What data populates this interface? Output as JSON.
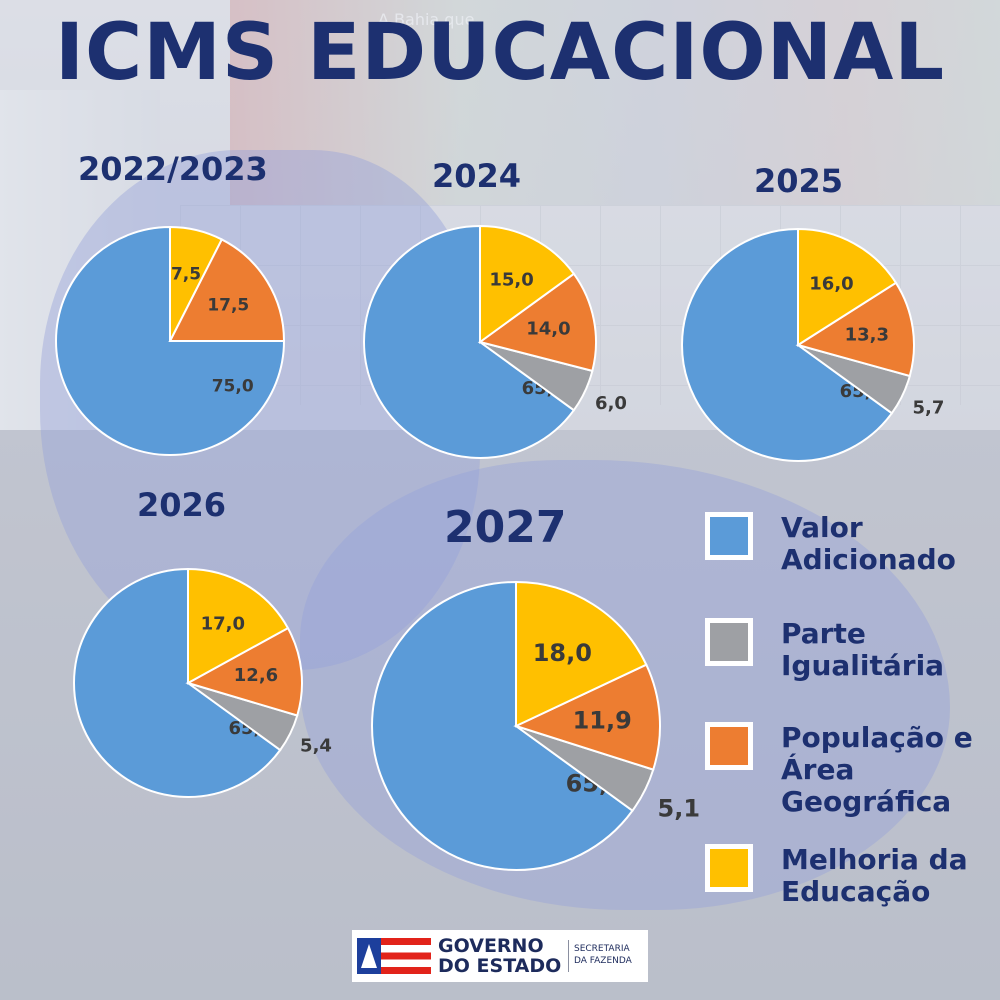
{
  "title": "ICMS EDUCACIONAL",
  "colors": {
    "valor_adicionado": "#5b9bd8",
    "parte_igualitaria": "#9ea0a4",
    "populacao_area": "#ed7d31",
    "melhoria_educacao": "#ffc000",
    "title": "#1d3070"
  },
  "chart_data": [
    {
      "type": "pie",
      "title": "2022/2023",
      "categories": [
        "Valor Adicionado",
        "Parte Igualitária",
        "População e Área Geográfica",
        "Melhoria da Educação"
      ],
      "values": [
        75.0,
        0,
        17.5,
        7.5
      ],
      "labels": [
        "75,0",
        "",
        "17,5",
        "7,5"
      ]
    },
    {
      "type": "pie",
      "title": "2024",
      "categories": [
        "Valor Adicionado",
        "Parte Igualitária",
        "População e Área Geográfica",
        "Melhoria da Educação"
      ],
      "values": [
        65.0,
        6.0,
        14.0,
        15.0
      ],
      "labels": [
        "65,0",
        "6,0",
        "14,0",
        "15,0"
      ]
    },
    {
      "type": "pie",
      "title": "2025",
      "categories": [
        "Valor Adicionado",
        "Parte Igualitária",
        "População e Área Geográfica",
        "Melhoria da Educação"
      ],
      "values": [
        65.0,
        5.7,
        13.3,
        16.0
      ],
      "labels": [
        "65,0",
        "5,7",
        "13,3",
        "16,0"
      ]
    },
    {
      "type": "pie",
      "title": "2026",
      "categories": [
        "Valor Adicionado",
        "Parte Igualitária",
        "População e Área Geográfica",
        "Melhoria da Educação"
      ],
      "values": [
        65.0,
        5.4,
        12.6,
        17.0
      ],
      "labels": [
        "65,0",
        "5,4",
        "12,6",
        "17,0"
      ]
    },
    {
      "type": "pie",
      "title": "2027",
      "categories": [
        "Valor Adicionado",
        "Parte Igualitária",
        "População e Área Geográfica",
        "Melhoria da Educação"
      ],
      "values": [
        65.0,
        5.1,
        11.9,
        18.0
      ],
      "labels": [
        "65,0",
        "5,1",
        "11,9",
        "18,0"
      ]
    }
  ],
  "legend": [
    {
      "label": "Valor Adicionado",
      "color": "#5b9bd8"
    },
    {
      "label": "Parte Igualitária",
      "color": "#9ea0a4"
    },
    {
      "label": "População e Área Geográfica",
      "color": "#ed7d31"
    },
    {
      "label": "Melhoria da Educação",
      "color": "#ffc000"
    }
  ],
  "background": {
    "mural_text": "A Bahia que"
  },
  "footer": {
    "line1": "GOVERNO",
    "line2": "DO ESTADO",
    "sec1": "SECRETARIA",
    "sec2": "DA FAZENDA"
  }
}
